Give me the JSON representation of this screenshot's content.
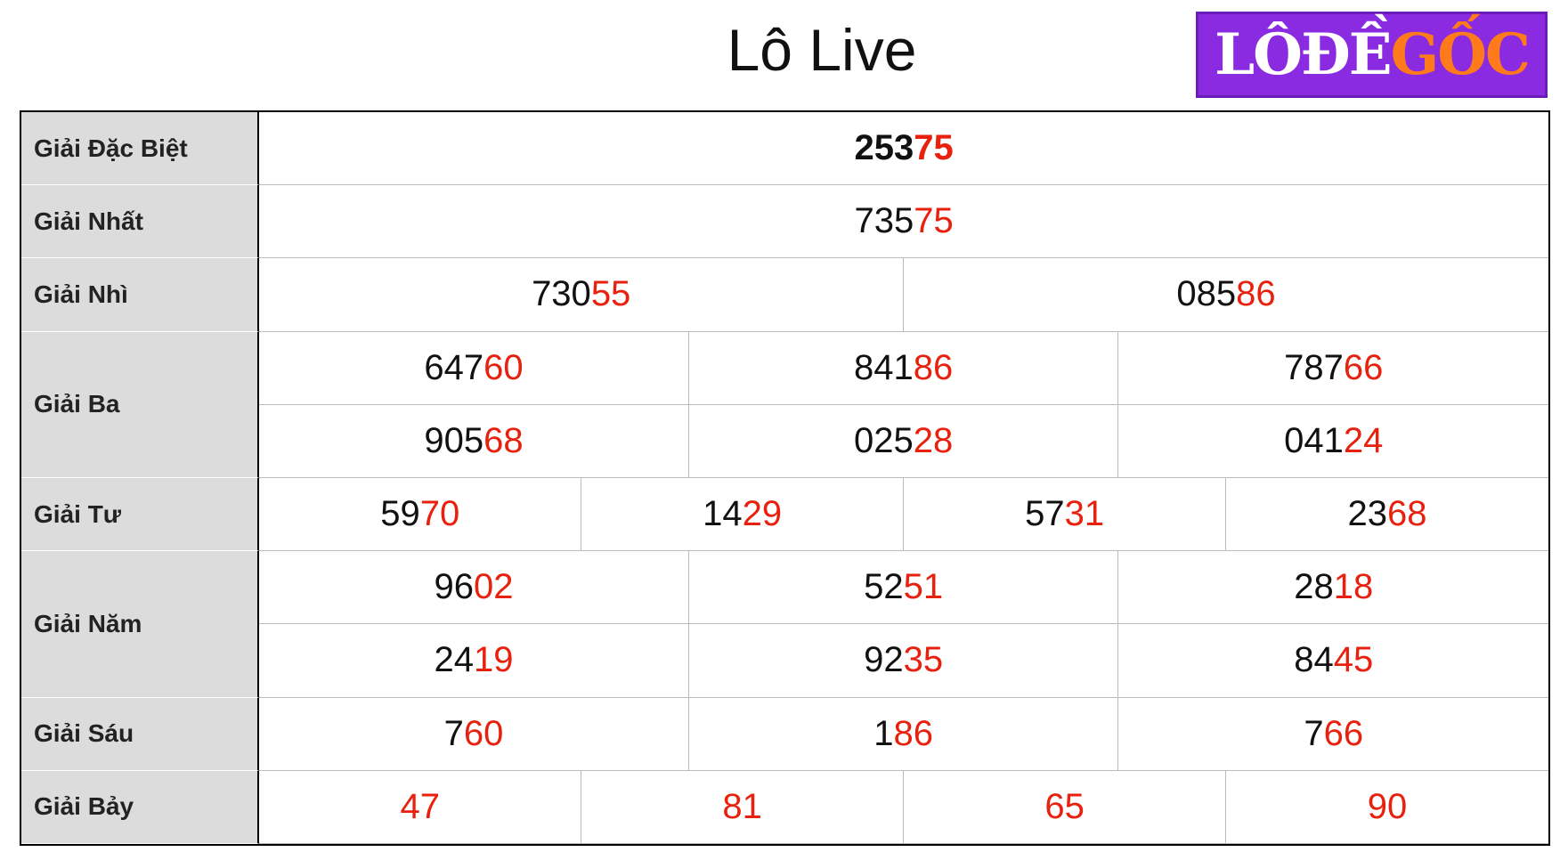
{
  "header": {
    "title": "Lô Live",
    "logo": {
      "left": "LÔĐỀ",
      "right": "GỐC"
    }
  },
  "prizes": [
    {
      "label": "Giải Đặc Biệt",
      "lines": [
        [
          {
            "head": "253",
            "tail": "75"
          }
        ]
      ]
    },
    {
      "label": "Giải Nhất",
      "lines": [
        [
          {
            "head": "735",
            "tail": "75"
          }
        ]
      ]
    },
    {
      "label": "Giải Nhì",
      "lines": [
        [
          {
            "head": "730",
            "tail": "55"
          },
          {
            "head": "085",
            "tail": "86"
          }
        ]
      ]
    },
    {
      "label": "Giải Ba",
      "lines": [
        [
          {
            "head": "647",
            "tail": "60"
          },
          {
            "head": "841",
            "tail": "86"
          },
          {
            "head": "787",
            "tail": "66"
          }
        ],
        [
          {
            "head": "905",
            "tail": "68"
          },
          {
            "head": "025",
            "tail": "28"
          },
          {
            "head": "041",
            "tail": "24"
          }
        ]
      ]
    },
    {
      "label": "Giải Tư",
      "lines": [
        [
          {
            "head": "59",
            "tail": "70"
          },
          {
            "head": "14",
            "tail": "29"
          },
          {
            "head": "57",
            "tail": "31"
          },
          {
            "head": "23",
            "tail": "68"
          }
        ]
      ]
    },
    {
      "label": "Giải Năm",
      "lines": [
        [
          {
            "head": "96",
            "tail": "02"
          },
          {
            "head": "52",
            "tail": "51"
          },
          {
            "head": "28",
            "tail": "18"
          }
        ],
        [
          {
            "head": "24",
            "tail": "19"
          },
          {
            "head": "92",
            "tail": "35"
          },
          {
            "head": "84",
            "tail": "45"
          }
        ]
      ]
    },
    {
      "label": "Giải Sáu",
      "lines": [
        [
          {
            "head": "7",
            "tail": "60"
          },
          {
            "head": "1",
            "tail": "86"
          },
          {
            "head": "7",
            "tail": "66"
          }
        ]
      ]
    },
    {
      "label": "Giải Bảy",
      "lines": [
        [
          {
            "tail": "47"
          },
          {
            "tail": "81"
          },
          {
            "tail": "65"
          },
          {
            "tail": "90"
          }
        ]
      ]
    }
  ]
}
